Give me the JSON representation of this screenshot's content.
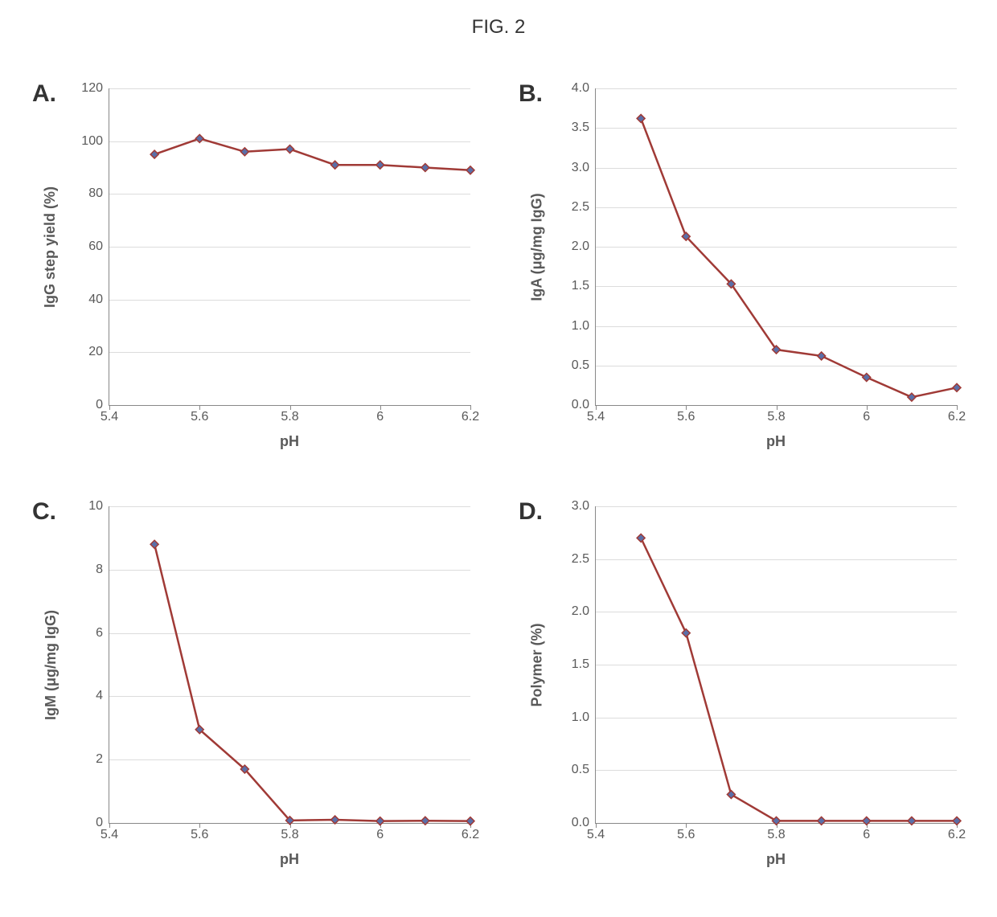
{
  "figure_title": "FIG. 2",
  "global": {
    "background_color": "#ffffff",
    "gridline_color": "#dcdcdc",
    "axis_color": "#888888",
    "text_color": "#595959",
    "panel_label_color": "#333333",
    "panel_label_fontsize": 30,
    "axis_label_fontsize": 18,
    "tick_label_fontsize": 16,
    "line_color": "#a03a36",
    "marker_fill": "#5a6fa8",
    "marker_stroke": "#a03a36",
    "line_width": 2.5,
    "marker_size": 10,
    "marker_shape": "diamond",
    "xlabel": "pH",
    "xlim": [
      5.4,
      6.2
    ],
    "xticks": [
      5.4,
      5.6,
      5.8,
      6.0,
      6.2
    ],
    "xtick_labels": [
      "5.4",
      "5.6",
      "5.8",
      "6",
      "6.2"
    ]
  },
  "panels": [
    {
      "id": "A",
      "label": "A.",
      "ylabel": "IgG step yield (%)",
      "ylim": [
        0,
        120
      ],
      "yticks": [
        0,
        20,
        40,
        60,
        80,
        100,
        120
      ],
      "ytick_labels": [
        "0",
        "20",
        "40",
        "60",
        "80",
        "100",
        "120"
      ],
      "x": [
        5.5,
        5.6,
        5.7,
        5.8,
        5.9,
        6.0,
        6.1,
        6.2
      ],
      "y": [
        95,
        101,
        96,
        97,
        91,
        91,
        90,
        89
      ]
    },
    {
      "id": "B",
      "label": "B.",
      "ylabel": "IgA  (μg/mg IgG)",
      "ylim": [
        0.0,
        4.0
      ],
      "yticks": [
        0.0,
        0.5,
        1.0,
        1.5,
        2.0,
        2.5,
        3.0,
        3.5,
        4.0
      ],
      "ytick_labels": [
        "0.0",
        "0.5",
        "1.0",
        "1.5",
        "2.0",
        "2.5",
        "3.0",
        "3.5",
        "4.0"
      ],
      "x": [
        5.5,
        5.6,
        5.7,
        5.8,
        5.9,
        6.0,
        6.1,
        6.2
      ],
      "y": [
        3.62,
        2.13,
        1.53,
        0.7,
        0.62,
        0.35,
        0.1,
        0.22
      ]
    },
    {
      "id": "C",
      "label": "C.",
      "ylabel": "IgM (μg/mg IgG)",
      "ylim": [
        0,
        10
      ],
      "yticks": [
        0,
        2,
        4,
        6,
        8,
        10
      ],
      "ytick_labels": [
        "0",
        "2",
        "4",
        "6",
        "8",
        "10"
      ],
      "x": [
        5.5,
        5.6,
        5.7,
        5.8,
        5.9,
        6.0,
        6.1,
        6.2
      ],
      "y": [
        8.8,
        2.95,
        1.7,
        0.08,
        0.1,
        0.06,
        0.07,
        0.06
      ]
    },
    {
      "id": "D",
      "label": "D.",
      "ylabel": "Polymer (%)",
      "ylim": [
        0.0,
        3.0
      ],
      "yticks": [
        0.0,
        0.5,
        1.0,
        1.5,
        2.0,
        2.5,
        3.0
      ],
      "ytick_labels": [
        "0.0",
        "0.5",
        "1.0",
        "1.5",
        "2.0",
        "2.5",
        "3.0"
      ],
      "x": [
        5.5,
        5.6,
        5.7,
        5.8,
        5.9,
        6.0,
        6.1,
        6.2
      ],
      "y": [
        2.7,
        1.8,
        0.27,
        0.02,
        0.02,
        0.02,
        0.02,
        0.02
      ]
    }
  ]
}
